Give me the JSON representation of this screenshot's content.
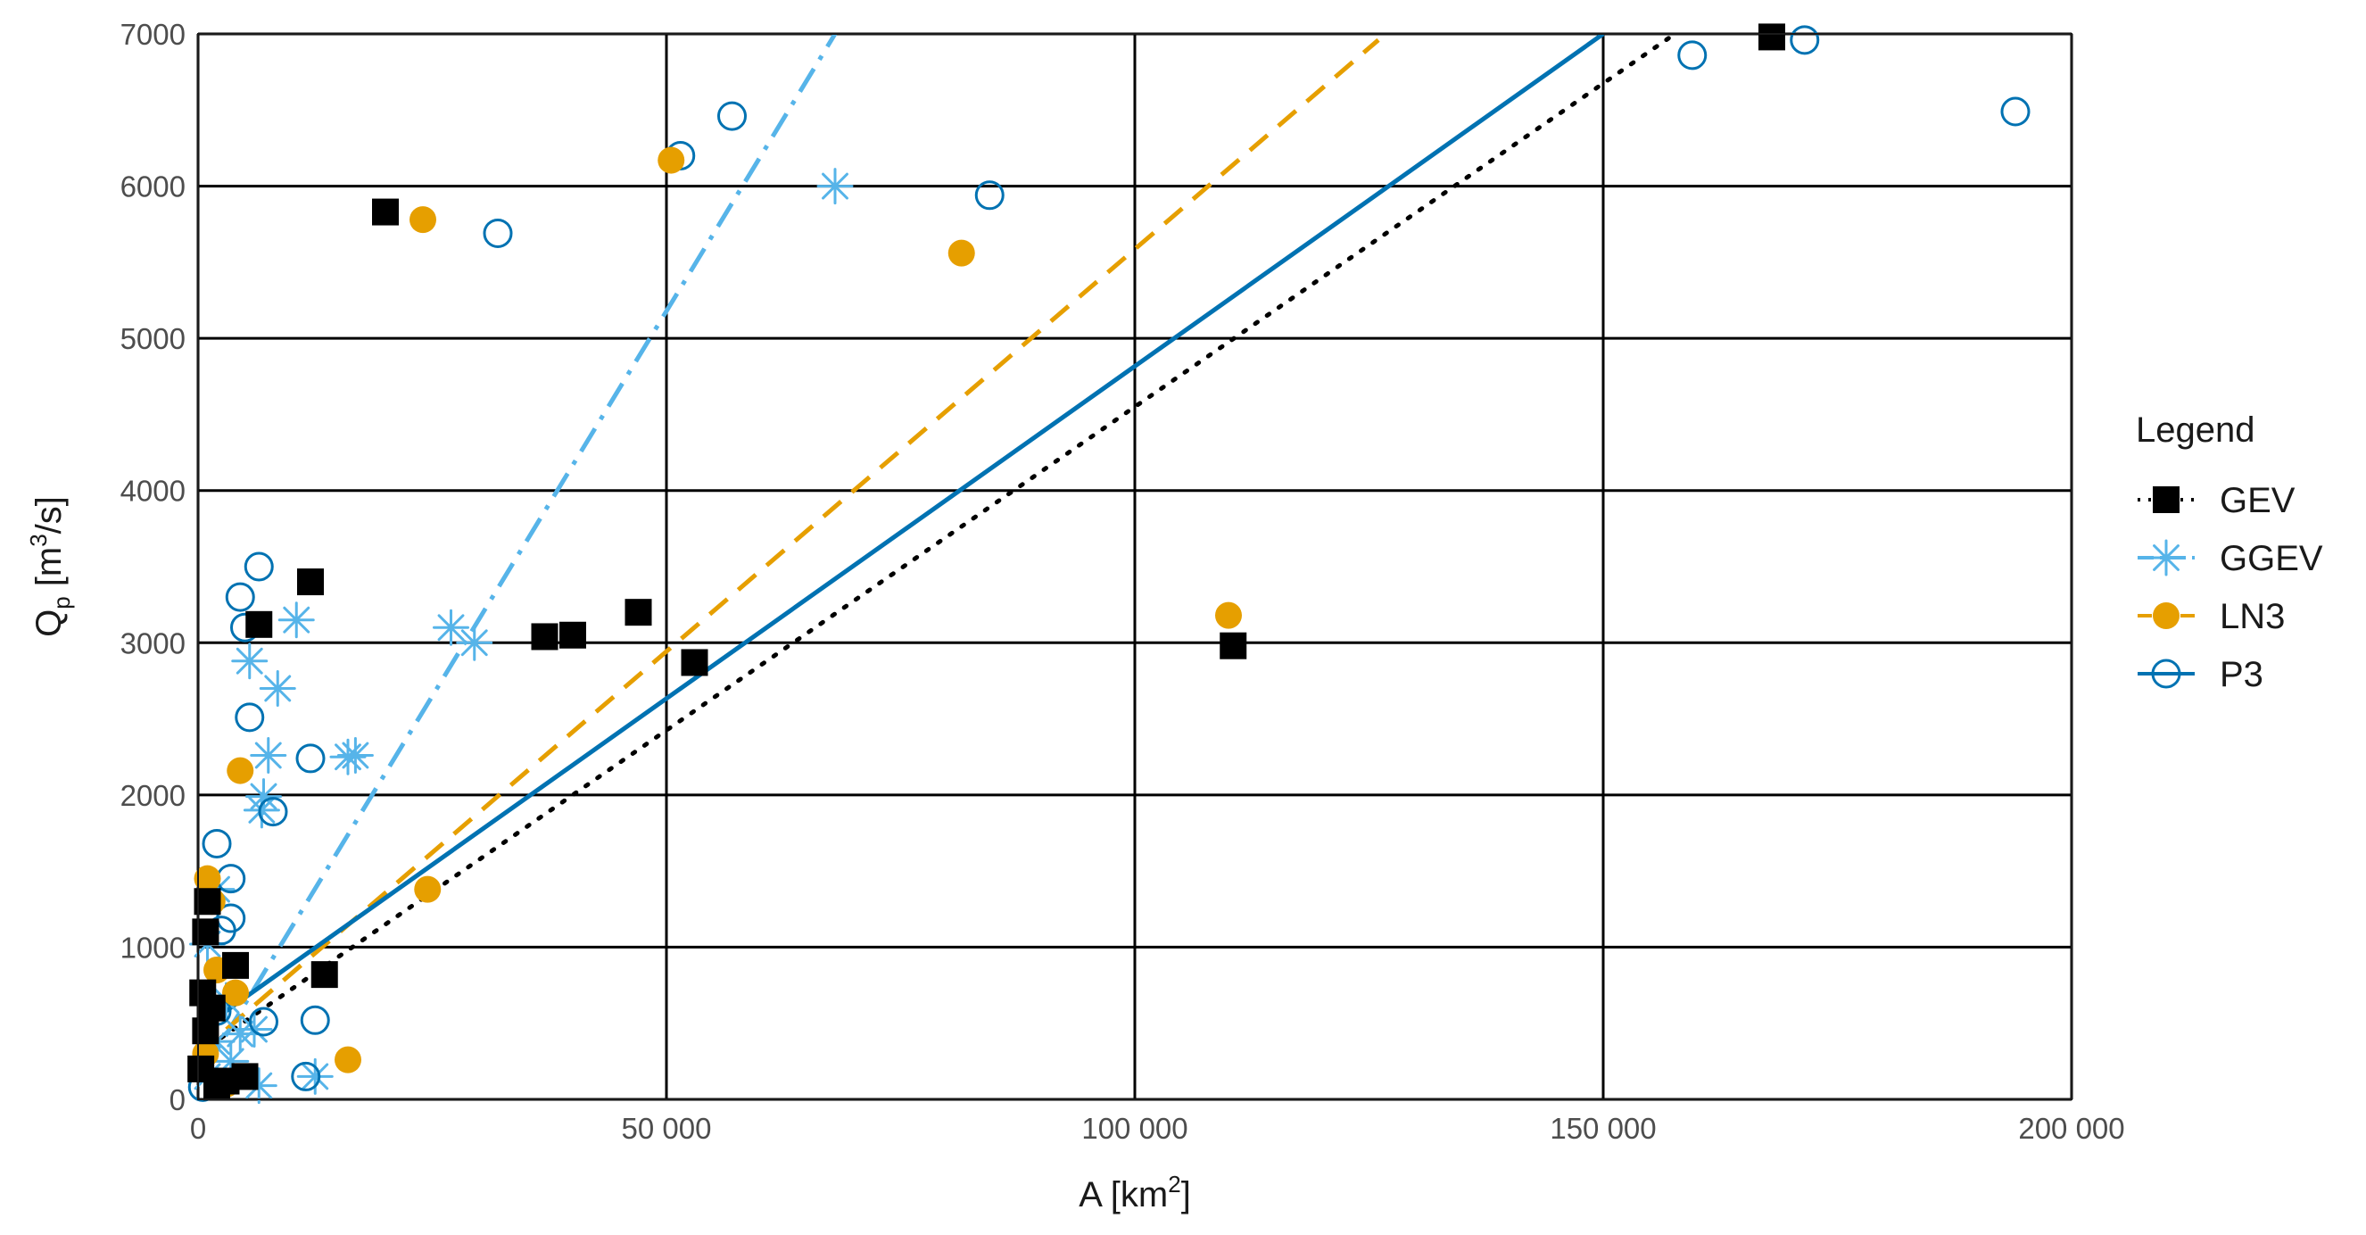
{
  "chart_data": {
    "type": "scatter",
    "title": "",
    "xlabel_main": "A [km",
    "xlabel_sup": "2",
    "xlabel_end": "]",
    "ylabel_main": "Q",
    "ylabel_sub": "p",
    "ylabel_mid": " [m",
    "ylabel_sup": "3",
    "ylabel_end": "/s]",
    "xlim": [
      0,
      200000
    ],
    "ylim": [
      0,
      7000
    ],
    "xticks": [
      0,
      50000,
      100000,
      150000,
      200000
    ],
    "xtick_labels": [
      "0",
      "50 000",
      "100 000",
      "150 000",
      "200 000"
    ],
    "yticks": [
      0,
      1000,
      2000,
      3000,
      4000,
      5000,
      6000,
      7000
    ],
    "ytick_labels": [
      "0",
      "1000",
      "2000",
      "3000",
      "4000",
      "5000",
      "6000",
      "7000"
    ],
    "grid": true,
    "legend_title": "Legend",
    "legend_position": "right",
    "series": [
      {
        "name": "GEV",
        "marker": "filled-square",
        "line_style": "dotted",
        "color": "#000000",
        "trend_line": {
          "x": [
            0,
            160000
          ],
          "y": [
            300,
            7100
          ]
        },
        "points": [
          [
            20000,
            5830
          ],
          [
            12000,
            3400
          ],
          [
            6500,
            3120
          ],
          [
            37000,
            3040
          ],
          [
            40000,
            3050
          ],
          [
            47000,
            3200
          ],
          [
            53000,
            2870
          ],
          [
            110500,
            2980
          ],
          [
            168000,
            6980
          ],
          [
            13500,
            820
          ],
          [
            4000,
            880
          ],
          [
            5000,
            150
          ],
          [
            3000,
            120
          ],
          [
            1000,
            1300
          ],
          [
            800,
            1100
          ],
          [
            500,
            700
          ],
          [
            1500,
            600
          ],
          [
            800,
            450
          ],
          [
            300,
            200
          ],
          [
            2000,
            80
          ]
        ]
      },
      {
        "name": "GGEV",
        "marker": "asterisk",
        "line_style": "dash-dot",
        "color": "#56b4e9",
        "trend_line": {
          "x": [
            0,
            68000
          ],
          "y": [
            120,
            7000
          ]
        },
        "points": [
          [
            68000,
            6000
          ],
          [
            10500,
            3150
          ],
          [
            27000,
            3100
          ],
          [
            29500,
            3000
          ],
          [
            5500,
            2880
          ],
          [
            8500,
            2700
          ],
          [
            7500,
            2260
          ],
          [
            16000,
            2250
          ],
          [
            16800,
            2260
          ],
          [
            7000,
            1990
          ],
          [
            6800,
            1900
          ],
          [
            2000,
            1380
          ],
          [
            1000,
            1020
          ],
          [
            3000,
            650
          ],
          [
            4500,
            430
          ],
          [
            6000,
            460
          ],
          [
            3500,
            250
          ],
          [
            12500,
            150
          ],
          [
            6500,
            90
          ],
          [
            1000,
            150
          ],
          [
            2000,
            380
          ]
        ]
      },
      {
        "name": "LN3",
        "marker": "filled-circle",
        "line_style": "dashed",
        "color": "#e69f00",
        "trend_line": {
          "x": [
            0,
            126000
          ],
          "y": [
            300,
            6960
          ]
        },
        "points": [
          [
            24000,
            5780
          ],
          [
            50500,
            6170
          ],
          [
            81500,
            5560
          ],
          [
            110000,
            3180
          ],
          [
            4500,
            2160
          ],
          [
            24500,
            1380
          ],
          [
            16000,
            260
          ],
          [
            1000,
            1450
          ],
          [
            1500,
            1300
          ],
          [
            2000,
            850
          ],
          [
            4000,
            700
          ],
          [
            800,
            300
          ],
          [
            3000,
            100
          ]
        ]
      },
      {
        "name": "P3",
        "marker": "open-circle",
        "line_style": "solid",
        "color": "#0072b2",
        "trend_line": {
          "x": [
            0,
            150000
          ],
          "y": [
            450,
            7000
          ]
        },
        "points": [
          [
            32000,
            5690
          ],
          [
            51500,
            6200
          ],
          [
            57000,
            6460
          ],
          [
            84500,
            5940
          ],
          [
            159500,
            6860
          ],
          [
            171500,
            6960
          ],
          [
            194000,
            6490
          ],
          [
            6500,
            3500
          ],
          [
            4500,
            3300
          ],
          [
            5000,
            3100
          ],
          [
            5500,
            2510
          ],
          [
            12000,
            2240
          ],
          [
            8000,
            1890
          ],
          [
            2000,
            1680
          ],
          [
            3500,
            1450
          ],
          [
            3500,
            1190
          ],
          [
            2500,
            1110
          ],
          [
            7000,
            510
          ],
          [
            12500,
            520
          ],
          [
            11500,
            150
          ],
          [
            2000,
            580
          ],
          [
            500,
            80
          ]
        ]
      }
    ]
  }
}
